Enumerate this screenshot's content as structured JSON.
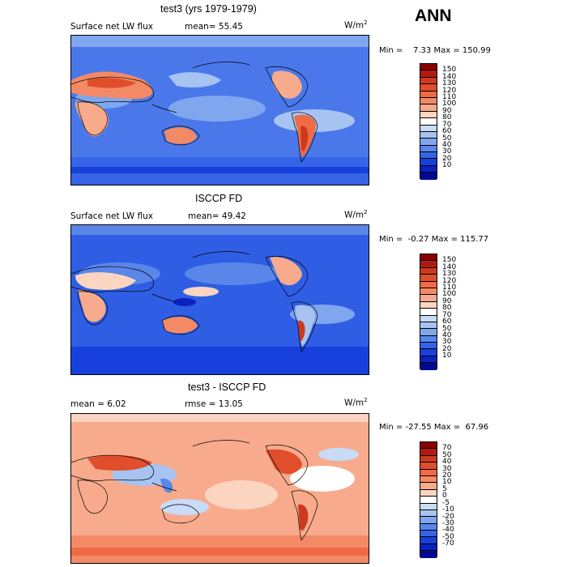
{
  "season": "ANN",
  "panels": [
    {
      "title": "test3 (yrs 1979-1979)",
      "left_label": "Surface net LW flux",
      "mid_label": "mean=  55.45",
      "units": "W/m",
      "units_exp": "2",
      "minmax": "Min =    7.33 Max = 150.99",
      "levels": [
        "150",
        "140",
        "130",
        "120",
        "110",
        "100",
        "90",
        "80",
        "70",
        "60",
        "50",
        "40",
        "30",
        "20",
        "10"
      ],
      "colors": [
        "#8b0000",
        "#b21a10",
        "#cc3a1e",
        "#e04e2c",
        "#ef6a45",
        "#f48a65",
        "#f7ab8c",
        "#fcd5c0",
        "#ffffff",
        "#c8dbf7",
        "#a7c3f2",
        "#7fa6ee",
        "#5a86ea",
        "#3564e6",
        "#1740dc",
        "#0a22c0",
        "#000a90"
      ],
      "base_color": "#4a78ea"
    },
    {
      "title": "ISCCP FD",
      "left_label": "Surface net LW flux",
      "mid_label": "mean=  49.42",
      "units": "W/m",
      "units_exp": "2",
      "minmax": "Min =  -0.27 Max = 115.77",
      "levels": [
        "150",
        "140",
        "130",
        "120",
        "110",
        "100",
        "90",
        "80",
        "70",
        "60",
        "50",
        "40",
        "30",
        "20",
        "10"
      ],
      "colors": [
        "#8b0000",
        "#b21a10",
        "#cc3a1e",
        "#e04e2c",
        "#ef6a45",
        "#f48a65",
        "#f7ab8c",
        "#fcd5c0",
        "#ffffff",
        "#c8dbf7",
        "#a7c3f2",
        "#7fa6ee",
        "#5a86ea",
        "#3564e6",
        "#1740dc",
        "#0a22c0",
        "#000a90"
      ],
      "base_color": "#2f5ee4"
    },
    {
      "title": "test3 - ISCCP FD",
      "left_label": "mean =    6.02",
      "mid_label": "rmse =  13.05",
      "units": "W/m",
      "units_exp": "2",
      "minmax": "Min = -27.55 Max =  67.96",
      "levels": [
        "70",
        "50",
        "40",
        "30",
        "20",
        "10",
        "5",
        "0",
        "-5",
        "-10",
        "-20",
        "-30",
        "-40",
        "-50",
        "-70"
      ],
      "colors": [
        "#8b0000",
        "#b21a10",
        "#cc3a1e",
        "#e04e2c",
        "#ef6a45",
        "#f48a65",
        "#f7ab8c",
        "#fcd5c0",
        "#ffffff",
        "#c8dbf7",
        "#a7c3f2",
        "#7fa6ee",
        "#5a86ea",
        "#3564e6",
        "#1740dc",
        "#0a22c0",
        "#000a90"
      ],
      "base_color": "#f7ab8c"
    }
  ]
}
